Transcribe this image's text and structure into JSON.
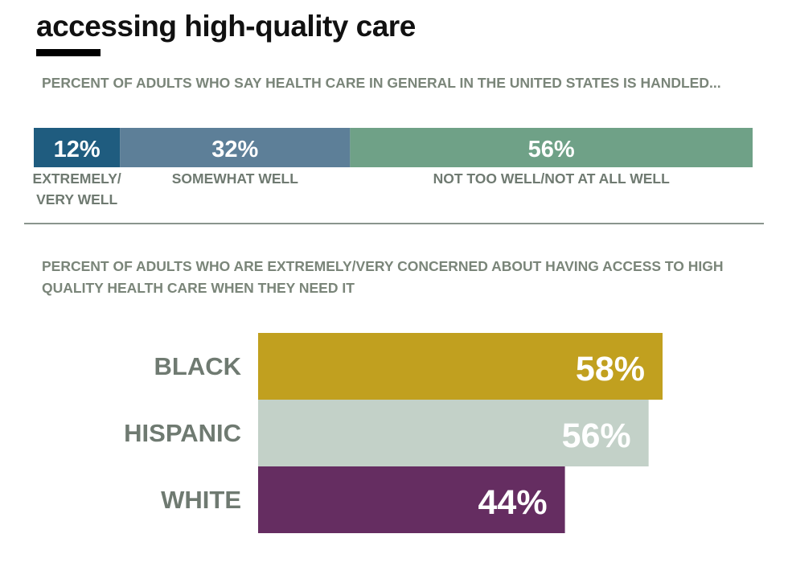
{
  "page": {
    "title": "accessing high-quality care"
  },
  "chart_data": [
    {
      "type": "bar",
      "stacked": true,
      "orientation": "horizontal",
      "title": "PERCENT OF ADULTS WHO SAY HEALTH CARE IN GENERAL IN THE UNITED STATES IS HANDLED...",
      "categories": [
        "EXTREMELY/ VERY WELL",
        "SOMEWHAT WELL",
        "NOT TOO WELL/NOT AT ALL WELL"
      ],
      "values": [
        12,
        32,
        56
      ],
      "value_labels": [
        "12%",
        "32%",
        "56%"
      ],
      "colors": [
        "#1f5c7f",
        "#5d7f98",
        "#6fa187"
      ],
      "xlim": [
        0,
        100
      ]
    },
    {
      "type": "bar",
      "orientation": "horizontal",
      "title": "PERCENT OF ADULTS WHO ARE EXTREMELY/VERY CONCERNED ABOUT HAVING ACCESS TO HIGH QUALITY HEALTH CARE WHEN THEY NEED IT",
      "categories": [
        "BLACK",
        "HISPANIC",
        "WHITE"
      ],
      "values": [
        58,
        56,
        44
      ],
      "value_labels": [
        "58%",
        "56%",
        "44%"
      ],
      "colors": [
        "#c1a01f",
        "#c3d1c8",
        "#652d61"
      ],
      "xlim": [
        0,
        58
      ]
    }
  ]
}
